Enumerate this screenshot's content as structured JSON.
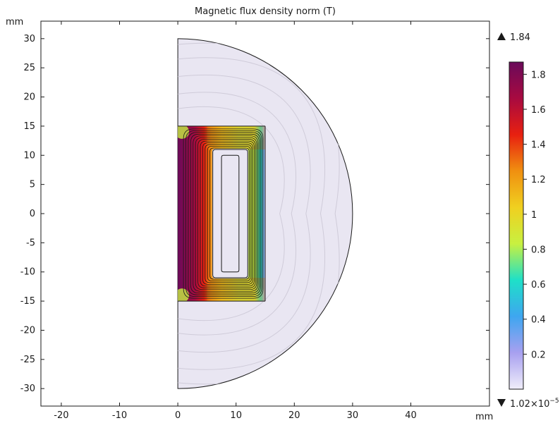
{
  "chart_data": {
    "type": "heatmap",
    "title": "Magnetic flux density norm (T)",
    "x_unit": "mm",
    "y_unit": "mm",
    "xlim": [
      -23.5,
      53.5
    ],
    "ylim": [
      -33,
      33
    ],
    "x_ticks": [
      -20,
      -10,
      0,
      10,
      20,
      30,
      40
    ],
    "y_ticks": [
      30,
      25,
      20,
      15,
      10,
      5,
      0,
      -5,
      -10,
      -15,
      -20,
      -25,
      -30
    ],
    "x_tick_labels": [
      "-20",
      "-10",
      "0",
      "10",
      "20",
      "30",
      "40"
    ],
    "y_tick_labels": [
      "30",
      "25",
      "20",
      "15",
      "10",
      "5",
      "0",
      "-5",
      "-10",
      "-15",
      "-20",
      "-25",
      "-30"
    ],
    "domain": {
      "air_semicircle_radius": 30,
      "core_outer": {
        "r_min": 0,
        "r_max": 15,
        "z_min": -15,
        "z_max": 15
      },
      "core_window": {
        "r_min": 6,
        "r_max": 12,
        "z_min": -11,
        "z_max": 11
      },
      "coil": {
        "r_min": 7.5,
        "r_max": 10.5,
        "z_min": -10,
        "z_max": 10
      }
    },
    "color_max": 1.84,
    "color_max_label": "1.84",
    "color_min_label": "1.02×10",
    "color_min_exponent": "−5",
    "colorbar_ticks": [
      1.8,
      1.6,
      1.4,
      1.2,
      1,
      0.8,
      0.6,
      0.4,
      0.2
    ],
    "colorbar_tick_labels": [
      "1.8",
      "1.6",
      "1.4",
      "1.2",
      "1",
      "0.8",
      "0.6",
      "0.4",
      "0.2"
    ],
    "colorbar_range": [
      0,
      1.87
    ],
    "colormap": [
      "#f0eefa",
      "#a8a0f0",
      "#3ea6f0",
      "#1ee0c8",
      "#c8f040",
      "#f0d020",
      "#f09010",
      "#e82010",
      "#a80a40",
      "#6a0a5a"
    ],
    "colors": {
      "background": "#ffffff",
      "air": "#e9e6f2",
      "stream_air": "#cfcbd9",
      "stream_core": "#1a1a1a"
    }
  }
}
